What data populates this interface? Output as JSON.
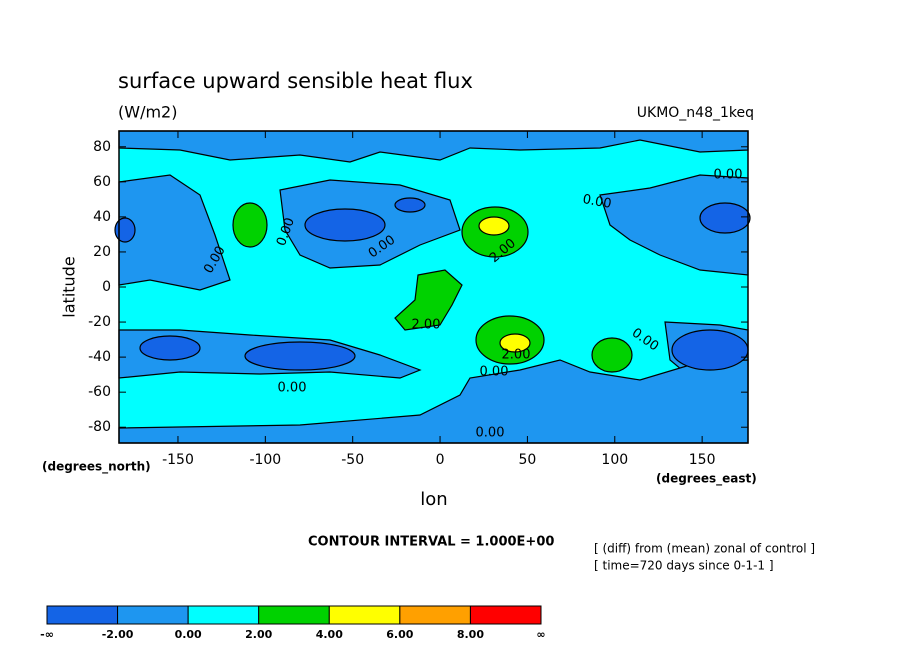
{
  "chart_data": {
    "type": "contour",
    "title": "surface upward sensible heat flux",
    "subtitle": "(W/m2)",
    "dataset": "UKMO_n48_1keq",
    "xlabel": "lon",
    "ylabel": "latitude",
    "xunits": "(degrees_east)",
    "yunits": "(degrees_north)",
    "xlim": [
      -183.75,
      176.25
    ],
    "ylim": [
      -89,
      89
    ],
    "xticks": [
      -150,
      -100,
      -50,
      0,
      50,
      100,
      150
    ],
    "yticks": [
      -80,
      -60,
      -40,
      -20,
      0,
      20,
      40,
      60,
      80
    ],
    "contour_interval": "CONTOUR INTERVAL = 1.000E+00",
    "notes": [
      "[ (diff) from (mean) zonal of control ]",
      "[ time=720 days since 0-1-1 ]"
    ],
    "contour_labels": [
      {
        "value": 0,
        "label": "0.00"
      },
      {
        "value": 0,
        "label": "0.00"
      },
      {
        "value": 0,
        "label": "0.00"
      },
      {
        "value": 0,
        "label": "0.00"
      },
      {
        "value": 0,
        "label": "0.00"
      },
      {
        "value": 0,
        "label": "0.00"
      },
      {
        "value": 0,
        "label": "0.00"
      },
      {
        "value": 0,
        "label": "0.00"
      },
      {
        "value": 0,
        "label": "0.00"
      },
      {
        "value": 2,
        "label": "2.00"
      },
      {
        "value": 2,
        "label": "2.00"
      },
      {
        "value": 2,
        "label": "2.00"
      }
    ],
    "colorbar": {
      "colors": [
        "#1464e6",
        "#1e96f0",
        "#00ffff",
        "#00d200",
        "#ffff00",
        "#ffa000",
        "#ff0000"
      ],
      "min_label": "-∞",
      "max_label": "∞",
      "bounds": [
        {
          "value": -2,
          "label": "-2.00"
        },
        {
          "value": 0,
          "label": "0.00"
        },
        {
          "value": 2,
          "label": "2.00"
        },
        {
          "value": 4,
          "label": "4.00"
        },
        {
          "value": 6,
          "label": "6.00"
        },
        {
          "value": 8,
          "label": "8.00"
        }
      ]
    }
  }
}
